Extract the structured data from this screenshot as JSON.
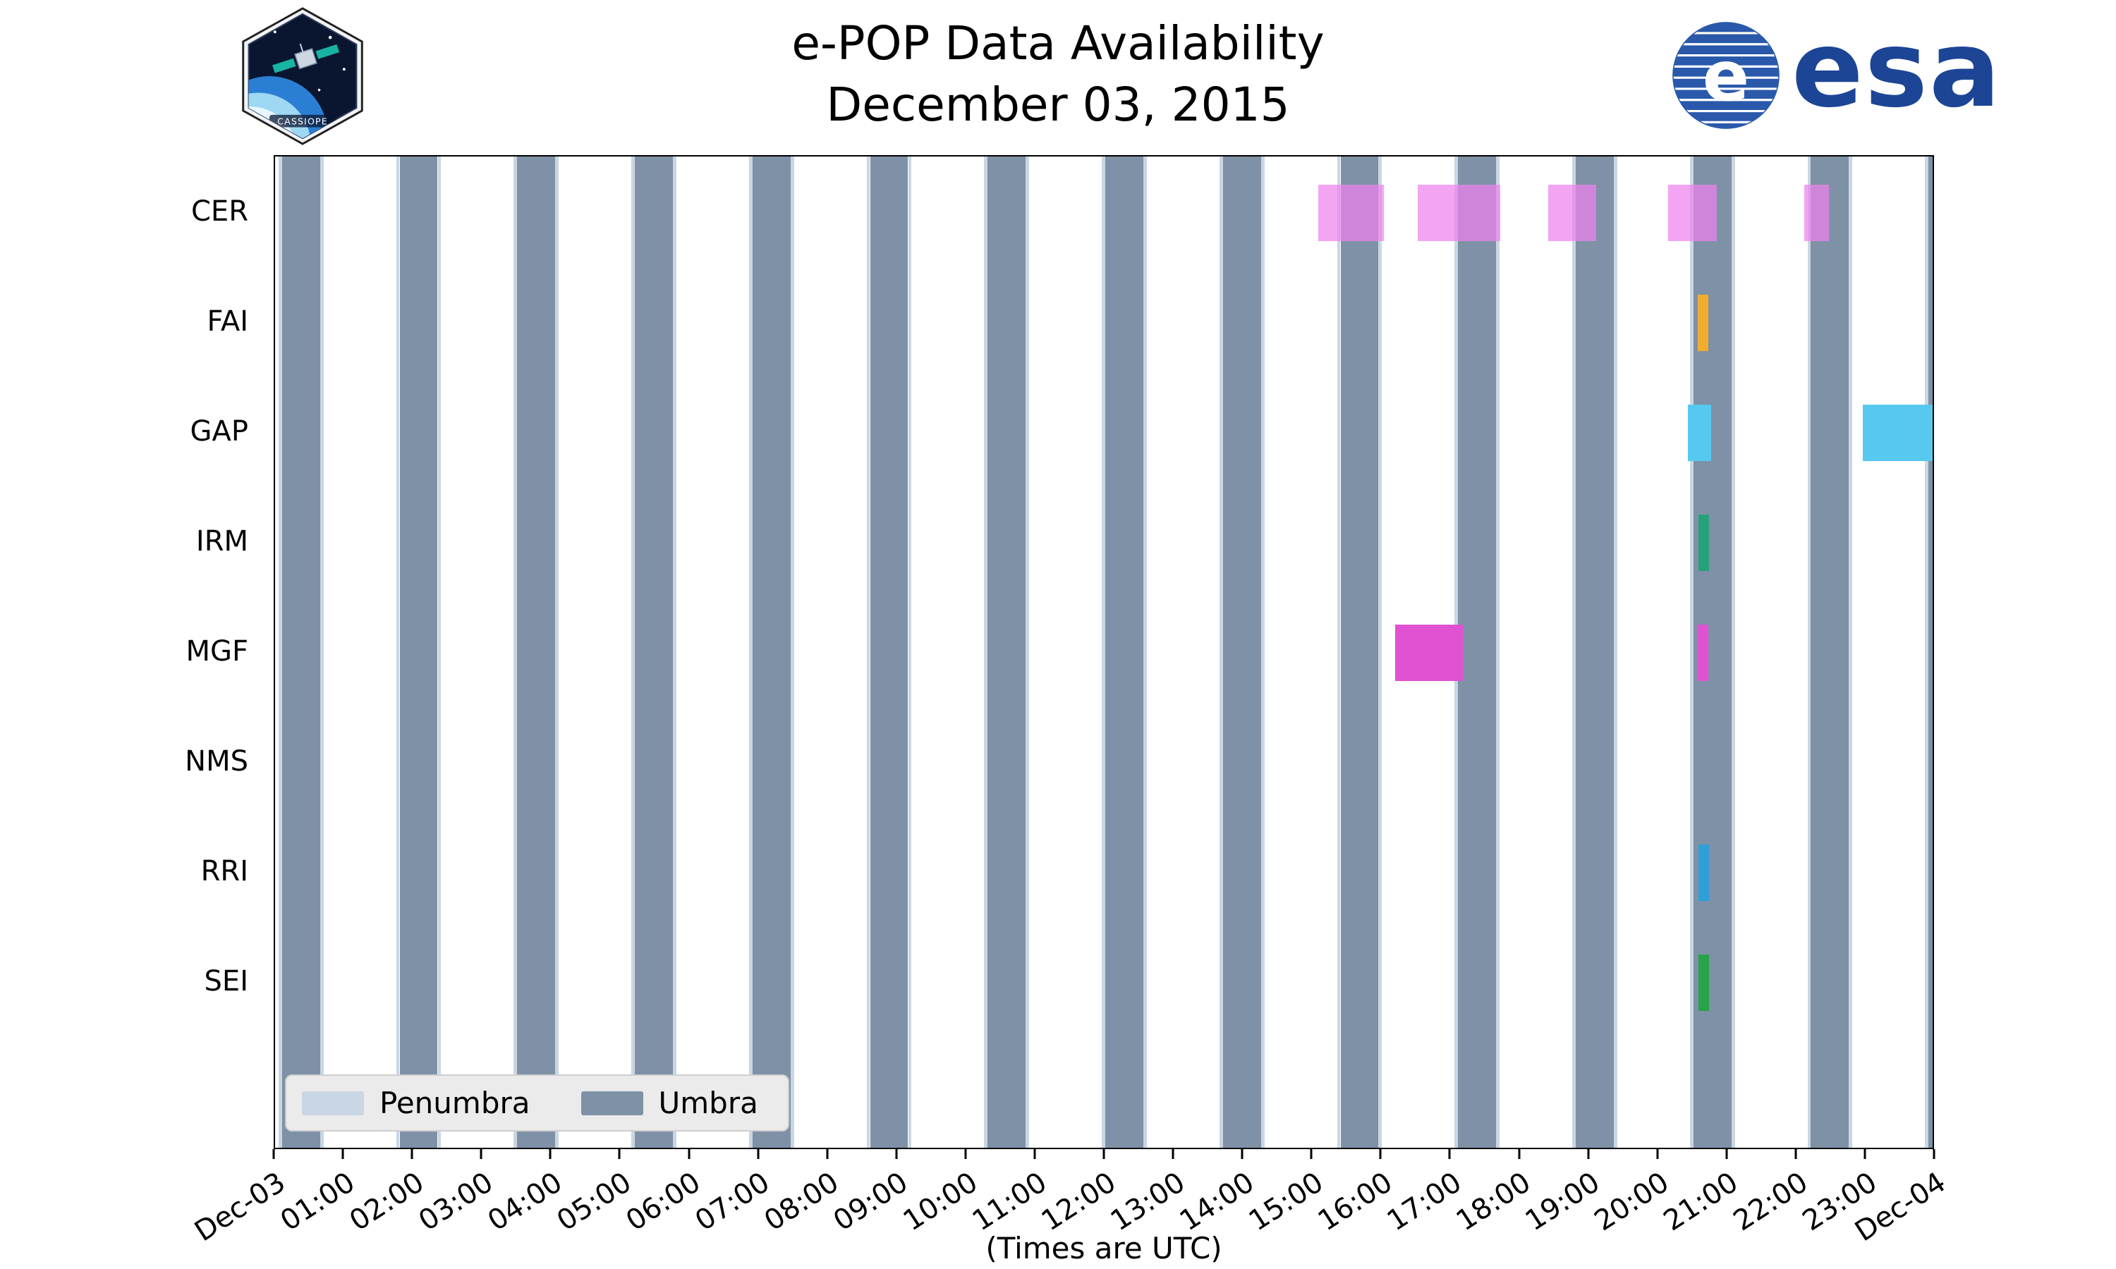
{
  "header": {
    "cassiope_patch_label": "CASSIOPE",
    "esa_logo_text": "esa"
  },
  "chart_data": {
    "type": "timeline",
    "title": "e-POP Data Availability",
    "subtitle": "December 03, 2015",
    "xlabel": "(Times are UTC)",
    "x_axis": {
      "start_hour": 0,
      "end_hour": 24,
      "tick_labels": [
        "Dec-03",
        "01:00",
        "02:00",
        "03:00",
        "04:00",
        "05:00",
        "06:00",
        "07:00",
        "08:00",
        "09:00",
        "10:00",
        "11:00",
        "12:00",
        "13:00",
        "14:00",
        "15:00",
        "16:00",
        "17:00",
        "18:00",
        "19:00",
        "20:00",
        "21:00",
        "22:00",
        "23:00",
        "Dec-04"
      ]
    },
    "instruments": [
      "CER",
      "FAI",
      "GAP",
      "IRM",
      "MGF",
      "NMS",
      "RRI",
      "SEI"
    ],
    "shadow_bands": {
      "umbra": {
        "label": "Umbra",
        "color": "#7e91a6",
        "intervals_hours": [
          [
            0.1,
            0.65
          ],
          [
            1.8,
            2.35
          ],
          [
            3.5,
            4.05
          ],
          [
            5.2,
            5.75
          ],
          [
            6.9,
            7.45
          ],
          [
            8.6,
            9.15
          ],
          [
            10.3,
            10.85
          ],
          [
            12.0,
            12.55
          ],
          [
            13.7,
            14.25
          ],
          [
            15.4,
            15.95
          ],
          [
            17.1,
            17.65
          ],
          [
            18.8,
            19.35
          ],
          [
            20.5,
            21.05
          ],
          [
            22.2,
            22.75
          ],
          [
            23.9,
            24.0
          ]
        ]
      },
      "penumbra": {
        "label": "Penumbra",
        "color": "#c9d6e3",
        "edge_width_hours": 0.05
      }
    },
    "series": [
      {
        "instrument": "CER",
        "color": "#ee82ee",
        "alpha": 0.72,
        "intervals_hours": [
          [
            15.08,
            16.03
          ],
          [
            16.52,
            17.71
          ],
          [
            18.4,
            19.1
          ],
          [
            20.14,
            20.84
          ],
          [
            22.1,
            22.46
          ]
        ]
      },
      {
        "instrument": "FAI",
        "color": "#f0ad2e",
        "alpha": 1,
        "intervals_hours": [
          [
            20.56,
            20.72
          ]
        ]
      },
      {
        "instrument": "GAP",
        "color": "#57c9f0",
        "alpha": 1,
        "intervals_hours": [
          [
            20.42,
            20.76
          ],
          [
            22.95,
            23.98
          ]
        ]
      },
      {
        "instrument": "IRM",
        "color": "#26a17b",
        "alpha": 1,
        "intervals_hours": [
          [
            20.57,
            20.73
          ]
        ]
      },
      {
        "instrument": "MGF",
        "color": "#e052d2",
        "alpha": 1,
        "intervals_hours": [
          [
            16.19,
            17.17
          ],
          [
            20.55,
            20.72
          ]
        ]
      },
      {
        "instrument": "NMS",
        "color": "#9aa0a6",
        "alpha": 1,
        "intervals_hours": []
      },
      {
        "instrument": "RRI",
        "color": "#2f9fd8",
        "alpha": 1,
        "intervals_hours": [
          [
            20.57,
            20.73
          ]
        ]
      },
      {
        "instrument": "SEI",
        "color": "#28a348",
        "alpha": 1,
        "intervals_hours": [
          [
            20.57,
            20.73
          ]
        ]
      }
    ],
    "legend": [
      {
        "label": "Penumbra",
        "color": "#c9d6e3"
      },
      {
        "label": "Umbra",
        "color": "#7e91a6"
      }
    ]
  }
}
